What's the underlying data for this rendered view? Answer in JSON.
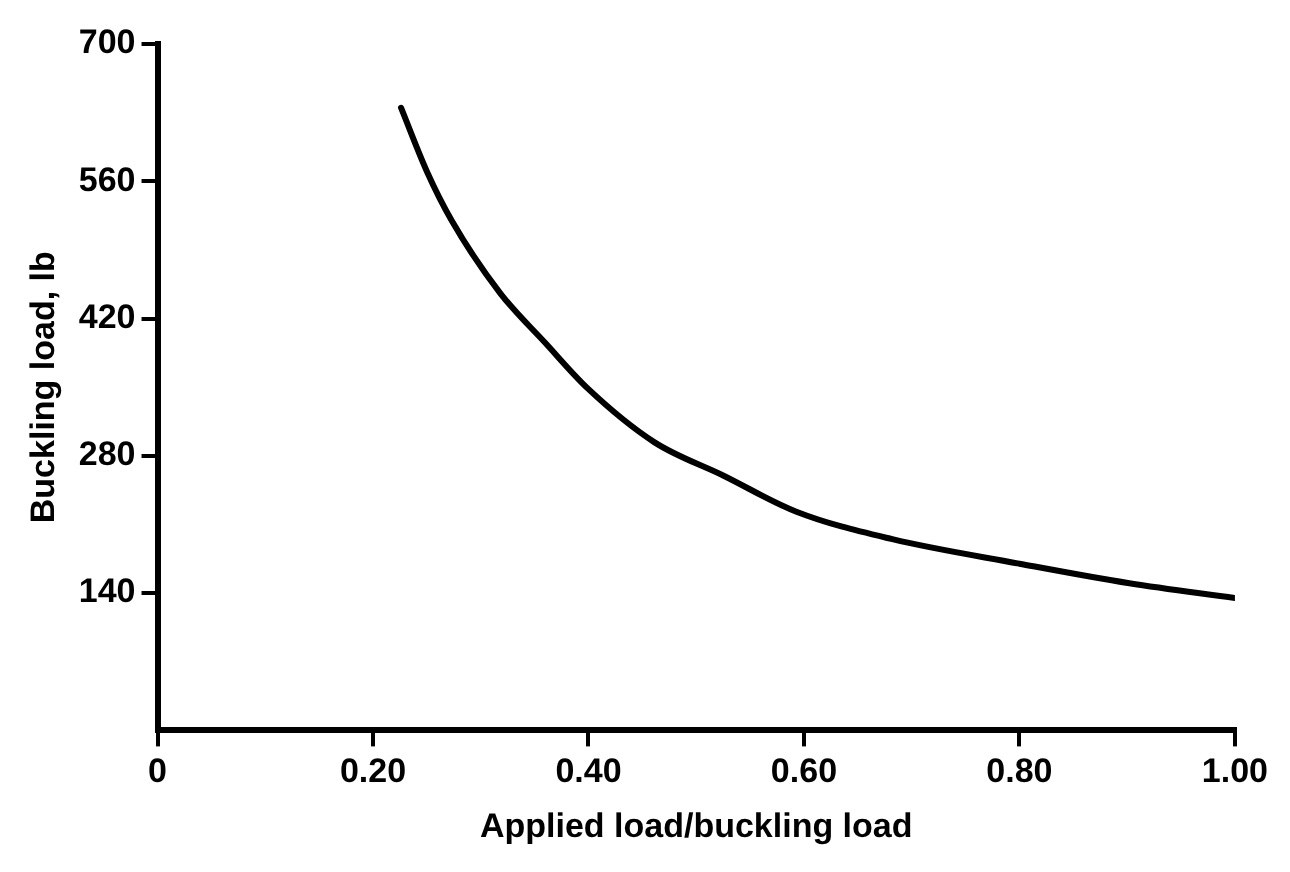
{
  "chart_data": {
    "type": "line",
    "xlabel": "Applied load/buckling load",
    "ylabel": "Buckling load, lb",
    "xlim": [
      0,
      1.0
    ],
    "xticks": [
      0,
      {
        "value": 0.2,
        "label": "0.20"
      },
      {
        "value": 0.4,
        "label": "0.40"
      },
      {
        "value": 0.6,
        "label": "0.60"
      },
      {
        "value": 0.8,
        "label": "0.80"
      },
      {
        "value": 1.0,
        "label": "1.00"
      }
    ],
    "ylim": [
      0,
      700
    ],
    "yticks": [
      140,
      280,
      420,
      560,
      700
    ],
    "grid": false,
    "legend": false,
    "marker": "none",
    "line_style": "solid",
    "series": [
      {
        "color": "#000000",
        "x": [
          0.226,
          0.25,
          0.273,
          0.318,
          0.36,
          0.399,
          0.461,
          0.525,
          0.593,
          0.682,
          0.8,
          0.902,
          1.0
        ],
        "values": [
          635,
          570,
          520,
          446,
          395,
          349,
          294,
          260,
          223,
          195,
          170,
          150,
          135
        ]
      }
    ]
  }
}
